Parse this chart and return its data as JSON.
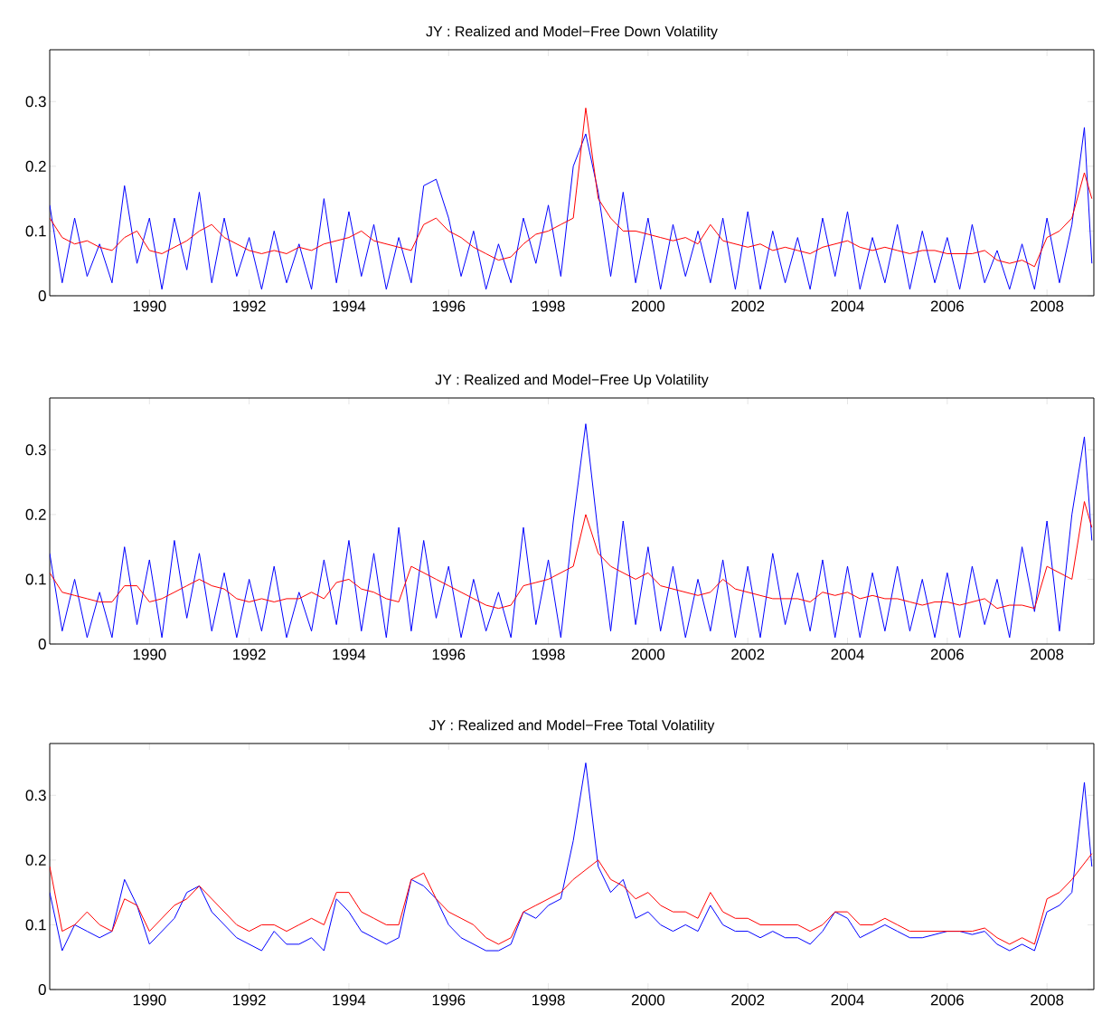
{
  "chart_data": [
    {
      "type": "line",
      "title": "JY : Realized and Model−Free Down Volatility",
      "xlim": [
        1988.0,
        2008.94
      ],
      "ylim": [
        0,
        0.38
      ],
      "xticks": [
        1990,
        1992,
        1994,
        1996,
        1998,
        2000,
        2002,
        2004,
        2006,
        2008
      ],
      "yticks": [
        0,
        0.1,
        0.2,
        0.3
      ],
      "grid": false,
      "x": [
        1988.0,
        1988.25,
        1988.5,
        1988.75,
        1989.0,
        1989.25,
        1989.5,
        1989.75,
        1990.0,
        1990.25,
        1990.5,
        1990.75,
        1991.0,
        1991.25,
        1991.5,
        1991.75,
        1992.0,
        1992.25,
        1992.5,
        1992.75,
        1993.0,
        1993.25,
        1993.5,
        1993.75,
        1994.0,
        1994.25,
        1994.5,
        1994.75,
        1995.0,
        1995.25,
        1995.5,
        1995.75,
        1996.0,
        1996.25,
        1996.5,
        1996.75,
        1997.0,
        1997.25,
        1997.5,
        1997.75,
        1998.0,
        1998.25,
        1998.5,
        1998.75,
        1999.0,
        1999.25,
        1999.5,
        1999.75,
        2000.0,
        2000.25,
        2000.5,
        2000.75,
        2001.0,
        2001.25,
        2001.5,
        2001.75,
        2002.0,
        2002.25,
        2002.5,
        2002.75,
        2003.0,
        2003.25,
        2003.5,
        2003.75,
        2004.0,
        2004.25,
        2004.5,
        2004.75,
        2005.0,
        2005.25,
        2005.5,
        2005.75,
        2006.0,
        2006.25,
        2006.5,
        2006.75,
        2007.0,
        2007.25,
        2007.5,
        2007.75,
        2008.0,
        2008.25,
        2008.5,
        2008.75,
        2008.9
      ],
      "series": [
        {
          "color": "#0000ff",
          "values": [
            0.14,
            0.02,
            0.12,
            0.03,
            0.08,
            0.02,
            0.17,
            0.05,
            0.12,
            0.01,
            0.12,
            0.04,
            0.16,
            0.02,
            0.12,
            0.03,
            0.09,
            0.01,
            0.1,
            0.02,
            0.08,
            0.01,
            0.15,
            0.02,
            0.13,
            0.03,
            0.11,
            0.01,
            0.09,
            0.02,
            0.17,
            0.18,
            0.12,
            0.03,
            0.1,
            0.01,
            0.08,
            0.02,
            0.12,
            0.05,
            0.14,
            0.03,
            0.2,
            0.25,
            0.16,
            0.03,
            0.16,
            0.02,
            0.12,
            0.01,
            0.11,
            0.03,
            0.1,
            0.02,
            0.12,
            0.01,
            0.13,
            0.01,
            0.1,
            0.02,
            0.09,
            0.01,
            0.12,
            0.03,
            0.13,
            0.01,
            0.09,
            0.02,
            0.11,
            0.01,
            0.1,
            0.02,
            0.09,
            0.01,
            0.11,
            0.02,
            0.07,
            0.01,
            0.08,
            0.01,
            0.12,
            0.02,
            0.11,
            0.26,
            0.05
          ]
        },
        {
          "color": "#ff0000",
          "values": [
            0.12,
            0.09,
            0.08,
            0.085,
            0.075,
            0.07,
            0.09,
            0.1,
            0.07,
            0.065,
            0.075,
            0.085,
            0.1,
            0.11,
            0.09,
            0.08,
            0.07,
            0.065,
            0.07,
            0.065,
            0.075,
            0.07,
            0.08,
            0.085,
            0.09,
            0.1,
            0.085,
            0.08,
            0.075,
            0.07,
            0.11,
            0.12,
            0.1,
            0.09,
            0.075,
            0.065,
            0.055,
            0.06,
            0.08,
            0.095,
            0.1,
            0.11,
            0.12,
            0.29,
            0.15,
            0.12,
            0.1,
            0.1,
            0.095,
            0.09,
            0.085,
            0.09,
            0.08,
            0.11,
            0.085,
            0.08,
            0.075,
            0.08,
            0.07,
            0.075,
            0.07,
            0.065,
            0.075,
            0.08,
            0.085,
            0.075,
            0.07,
            0.075,
            0.07,
            0.065,
            0.07,
            0.07,
            0.065,
            0.065,
            0.065,
            0.07,
            0.055,
            0.05,
            0.055,
            0.045,
            0.09,
            0.1,
            0.12,
            0.19,
            0.15
          ]
        }
      ]
    },
    {
      "type": "line",
      "title": "JY : Realized and Model−Free Up Volatility",
      "xlim": [
        1988.0,
        2008.94
      ],
      "ylim": [
        0,
        0.38
      ],
      "xticks": [
        1990,
        1992,
        1994,
        1996,
        1998,
        2000,
        2002,
        2004,
        2006,
        2008
      ],
      "yticks": [
        0,
        0.1,
        0.2,
        0.3
      ],
      "grid": false,
      "x": [
        1988.0,
        1988.25,
        1988.5,
        1988.75,
        1989.0,
        1989.25,
        1989.5,
        1989.75,
        1990.0,
        1990.25,
        1990.5,
        1990.75,
        1991.0,
        1991.25,
        1991.5,
        1991.75,
        1992.0,
        1992.25,
        1992.5,
        1992.75,
        1993.0,
        1993.25,
        1993.5,
        1993.75,
        1994.0,
        1994.25,
        1994.5,
        1994.75,
        1995.0,
        1995.25,
        1995.5,
        1995.75,
        1996.0,
        1996.25,
        1996.5,
        1996.75,
        1997.0,
        1997.25,
        1997.5,
        1997.75,
        1998.0,
        1998.25,
        1998.5,
        1998.75,
        1999.0,
        1999.25,
        1999.5,
        1999.75,
        2000.0,
        2000.25,
        2000.5,
        2000.75,
        2001.0,
        2001.25,
        2001.5,
        2001.75,
        2002.0,
        2002.25,
        2002.5,
        2002.75,
        2003.0,
        2003.25,
        2003.5,
        2003.75,
        2004.0,
        2004.25,
        2004.5,
        2004.75,
        2005.0,
        2005.25,
        2005.5,
        2005.75,
        2006.0,
        2006.25,
        2006.5,
        2006.75,
        2007.0,
        2007.25,
        2007.5,
        2007.75,
        2008.0,
        2008.25,
        2008.5,
        2008.75,
        2008.9
      ],
      "series": [
        {
          "color": "#0000ff",
          "values": [
            0.14,
            0.02,
            0.1,
            0.01,
            0.08,
            0.01,
            0.15,
            0.03,
            0.13,
            0.01,
            0.16,
            0.04,
            0.14,
            0.02,
            0.11,
            0.01,
            0.1,
            0.02,
            0.12,
            0.01,
            0.08,
            0.02,
            0.13,
            0.03,
            0.16,
            0.02,
            0.14,
            0.01,
            0.18,
            0.02,
            0.16,
            0.04,
            0.12,
            0.01,
            0.1,
            0.02,
            0.08,
            0.01,
            0.18,
            0.03,
            0.13,
            0.01,
            0.19,
            0.34,
            0.17,
            0.02,
            0.19,
            0.03,
            0.15,
            0.02,
            0.12,
            0.01,
            0.1,
            0.02,
            0.13,
            0.01,
            0.12,
            0.01,
            0.14,
            0.03,
            0.11,
            0.02,
            0.13,
            0.01,
            0.12,
            0.01,
            0.11,
            0.02,
            0.12,
            0.02,
            0.1,
            0.01,
            0.11,
            0.01,
            0.12,
            0.03,
            0.1,
            0.01,
            0.15,
            0.05,
            0.19,
            0.02,
            0.2,
            0.32,
            0.16
          ]
        },
        {
          "color": "#ff0000",
          "values": [
            0.11,
            0.08,
            0.075,
            0.07,
            0.065,
            0.065,
            0.09,
            0.09,
            0.065,
            0.07,
            0.08,
            0.09,
            0.1,
            0.09,
            0.085,
            0.07,
            0.065,
            0.07,
            0.065,
            0.07,
            0.07,
            0.08,
            0.07,
            0.095,
            0.1,
            0.085,
            0.08,
            0.07,
            0.065,
            0.12,
            0.11,
            0.1,
            0.09,
            0.08,
            0.07,
            0.06,
            0.055,
            0.06,
            0.09,
            0.095,
            0.1,
            0.11,
            0.12,
            0.2,
            0.14,
            0.12,
            0.11,
            0.1,
            0.11,
            0.09,
            0.085,
            0.08,
            0.075,
            0.08,
            0.1,
            0.085,
            0.08,
            0.075,
            0.07,
            0.07,
            0.07,
            0.065,
            0.08,
            0.075,
            0.08,
            0.07,
            0.075,
            0.07,
            0.07,
            0.065,
            0.06,
            0.065,
            0.065,
            0.06,
            0.065,
            0.07,
            0.055,
            0.06,
            0.06,
            0.055,
            0.12,
            0.11,
            0.1,
            0.22,
            0.18
          ]
        }
      ]
    },
    {
      "type": "line",
      "title": "JY : Realized and Model−Free Total Volatility",
      "xlim": [
        1988.0,
        2008.94
      ],
      "ylim": [
        0,
        0.38
      ],
      "xticks": [
        1990,
        1992,
        1994,
        1996,
        1998,
        2000,
        2002,
        2004,
        2006,
        2008
      ],
      "yticks": [
        0,
        0.1,
        0.2,
        0.3
      ],
      "grid": false,
      "x": [
        1988.0,
        1988.25,
        1988.5,
        1988.75,
        1989.0,
        1989.25,
        1989.5,
        1989.75,
        1990.0,
        1990.25,
        1990.5,
        1990.75,
        1991.0,
        1991.25,
        1991.5,
        1991.75,
        1992.0,
        1992.25,
        1992.5,
        1992.75,
        1993.0,
        1993.25,
        1993.5,
        1993.75,
        1994.0,
        1994.25,
        1994.5,
        1994.75,
        1995.0,
        1995.25,
        1995.5,
        1995.75,
        1996.0,
        1996.25,
        1996.5,
        1996.75,
        1997.0,
        1997.25,
        1997.5,
        1997.75,
        1998.0,
        1998.25,
        1998.5,
        1998.75,
        1999.0,
        1999.25,
        1999.5,
        1999.75,
        2000.0,
        2000.25,
        2000.5,
        2000.75,
        2001.0,
        2001.25,
        2001.5,
        2001.75,
        2002.0,
        2002.25,
        2002.5,
        2002.75,
        2003.0,
        2003.25,
        2003.5,
        2003.75,
        2004.0,
        2004.25,
        2004.5,
        2004.75,
        2005.0,
        2005.25,
        2005.5,
        2005.75,
        2006.0,
        2006.25,
        2006.5,
        2006.75,
        2007.0,
        2007.25,
        2007.5,
        2007.75,
        2008.0,
        2008.25,
        2008.5,
        2008.75,
        2008.9
      ],
      "series": [
        {
          "color": "#0000ff",
          "values": [
            0.15,
            0.06,
            0.1,
            0.09,
            0.08,
            0.09,
            0.17,
            0.13,
            0.07,
            0.09,
            0.11,
            0.15,
            0.16,
            0.12,
            0.1,
            0.08,
            0.07,
            0.06,
            0.09,
            0.07,
            0.07,
            0.08,
            0.06,
            0.14,
            0.12,
            0.09,
            0.08,
            0.07,
            0.08,
            0.17,
            0.16,
            0.14,
            0.1,
            0.08,
            0.07,
            0.06,
            0.06,
            0.07,
            0.12,
            0.11,
            0.13,
            0.14,
            0.23,
            0.35,
            0.19,
            0.15,
            0.17,
            0.11,
            0.12,
            0.1,
            0.09,
            0.1,
            0.09,
            0.13,
            0.1,
            0.09,
            0.09,
            0.08,
            0.09,
            0.08,
            0.08,
            0.07,
            0.09,
            0.12,
            0.11,
            0.08,
            0.09,
            0.1,
            0.09,
            0.08,
            0.08,
            0.085,
            0.09,
            0.09,
            0.085,
            0.09,
            0.07,
            0.06,
            0.07,
            0.06,
            0.12,
            0.13,
            0.15,
            0.32,
            0.19
          ]
        },
        {
          "color": "#ff0000",
          "values": [
            0.19,
            0.09,
            0.1,
            0.12,
            0.1,
            0.09,
            0.14,
            0.13,
            0.09,
            0.11,
            0.13,
            0.14,
            0.16,
            0.14,
            0.12,
            0.1,
            0.09,
            0.1,
            0.1,
            0.09,
            0.1,
            0.11,
            0.1,
            0.15,
            0.15,
            0.12,
            0.11,
            0.1,
            0.1,
            0.17,
            0.18,
            0.14,
            0.12,
            0.11,
            0.1,
            0.08,
            0.07,
            0.08,
            0.12,
            0.13,
            0.14,
            0.15,
            0.17,
            null,
            0.2,
            0.17,
            0.16,
            0.14,
            0.15,
            0.13,
            0.12,
            0.12,
            0.11,
            0.15,
            0.12,
            0.11,
            0.11,
            0.1,
            0.1,
            0.1,
            0.1,
            0.09,
            0.1,
            0.12,
            0.12,
            0.1,
            0.1,
            0.11,
            0.1,
            0.09,
            0.09,
            0.09,
            0.09,
            0.09,
            0.09,
            0.095,
            0.08,
            0.07,
            0.08,
            0.07,
            0.14,
            0.15,
            0.17,
            null,
            0.21
          ]
        }
      ]
    }
  ]
}
